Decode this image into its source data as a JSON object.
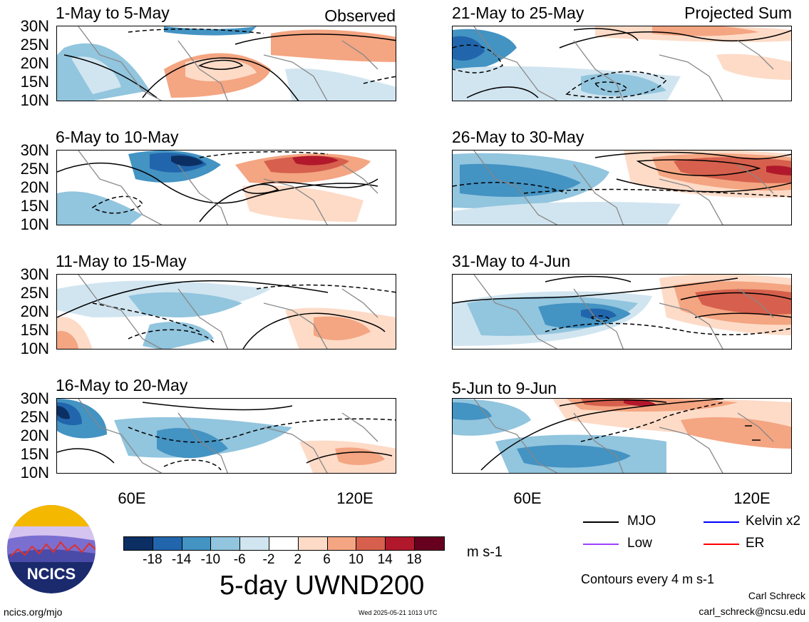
{
  "panels_left": [
    {
      "title": "1-May to 5-May",
      "tag": "Observed"
    },
    {
      "title": "6-May to 10-May",
      "tag": ""
    },
    {
      "title": "11-May to 15-May",
      "tag": ""
    },
    {
      "title": "16-May to 20-May",
      "tag": ""
    }
  ],
  "panels_right": [
    {
      "title": "21-May to 25-May",
      "tag": "Projected Sum"
    },
    {
      "title": "26-May to 30-May",
      "tag": ""
    },
    {
      "title": "31-May to 4-Jun",
      "tag": ""
    },
    {
      "title": "5-Jun to 9-Jun",
      "tag": ""
    }
  ],
  "lat_labels": [
    "30N",
    "25N",
    "20N",
    "15N",
    "10N"
  ],
  "lon_labels": [
    "60E",
    "120E"
  ],
  "colorbar": {
    "labels": [
      "-18",
      "-14",
      "-10",
      "-6",
      "-2",
      "2",
      "6",
      "10",
      "14",
      "18"
    ],
    "colors": [
      "#0c2f63",
      "#2166ac",
      "#4393c3",
      "#92c5de",
      "#d1e5f0",
      "#ffffff",
      "#fddbc7",
      "#f4a582",
      "#d6604d",
      "#b2182b",
      "#67001f"
    ],
    "units": "m s-1"
  },
  "title": "5-day UWND200",
  "legend": [
    {
      "label": "MJO",
      "color": "#000000"
    },
    {
      "label": "Kelvin x2",
      "color": "#0000ff"
    },
    {
      "label": "Low",
      "color": "#a040ff"
    },
    {
      "label": "ER",
      "color": "#ff0000"
    }
  ],
  "contour_note": "Contours every 4 m s-1",
  "credit_name": "Carl Schreck",
  "credit_email": "carl_schreck@ncsu.edu",
  "site": "ncics.org/mjo",
  "timestamp": "Wed 2025-05-21 1013 UTC",
  "logo_text": "NCICS"
}
